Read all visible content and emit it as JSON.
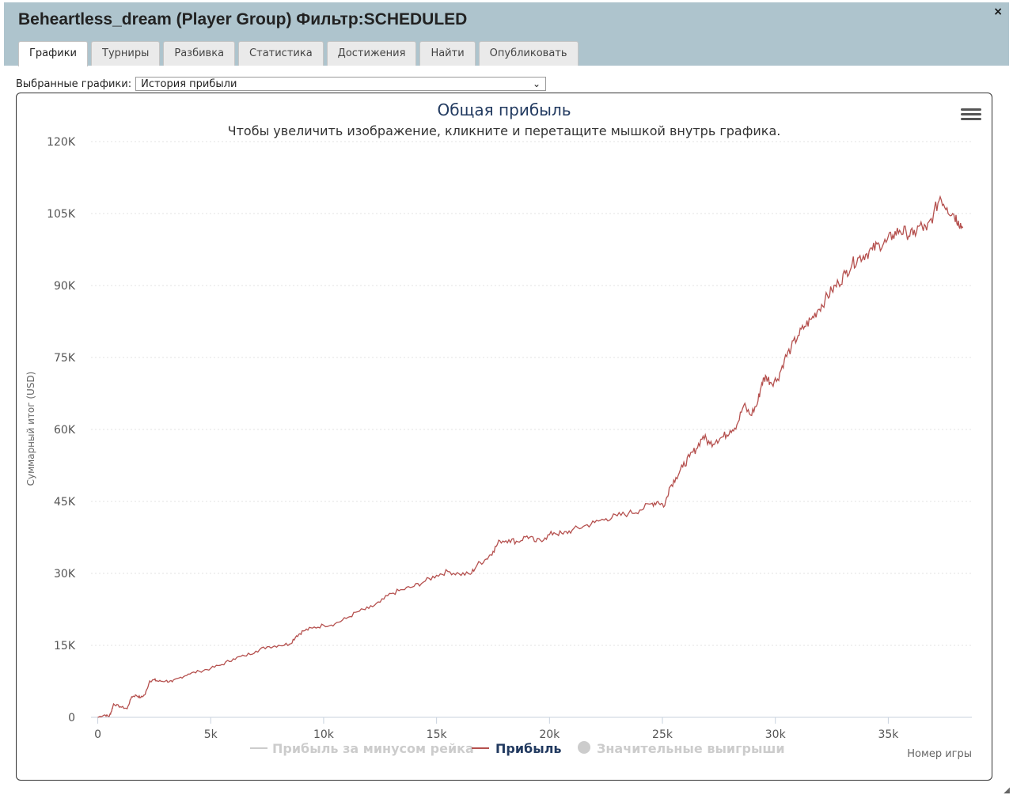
{
  "window": {
    "title": "Beheartless_dream (Player Group) Фильтр:SCHEDULED",
    "close_label": "×"
  },
  "tabs": [
    {
      "label": "Графики",
      "active": true
    },
    {
      "label": "Турниры",
      "active": false
    },
    {
      "label": "Разбивка",
      "active": false
    },
    {
      "label": "Статистика",
      "active": false
    },
    {
      "label": "Достижения",
      "active": false
    },
    {
      "label": "Найти",
      "active": false
    },
    {
      "label": "Опубликовать",
      "active": false
    }
  ],
  "selector": {
    "label": "Выбранные графики:",
    "value": "История прибыли"
  },
  "chart_data": {
    "type": "line",
    "title": "Общая прибыль",
    "subtitle": "Чтобы увеличить изображение, кликните и перетащите мышкой внутрь графика.",
    "ylabel": "Суммарный итог (USD)",
    "xlabel": "Номер игры",
    "xlim": [
      -300,
      38700
    ],
    "ylim": [
      0,
      120000
    ],
    "x_ticks": [
      0,
      5000,
      10000,
      15000,
      20000,
      25000,
      30000,
      35000
    ],
    "x_tick_labels": [
      "0",
      "5k",
      "10k",
      "15k",
      "20k",
      "25k",
      "30k",
      "35k"
    ],
    "y_ticks": [
      0,
      15000,
      30000,
      45000,
      60000,
      75000,
      90000,
      105000,
      120000
    ],
    "y_tick_labels": [
      "0",
      "15K",
      "30K",
      "45K",
      "60K",
      "75K",
      "90K",
      "105K",
      "120K"
    ],
    "grid": true,
    "legend_position": "bottom",
    "legend": [
      {
        "name": "Прибыль за минусом рейка",
        "symbol": "line",
        "color": "#cccccc",
        "visible": false
      },
      {
        "name": "Прибыль",
        "symbol": "line",
        "color": "#b5504e",
        "visible": true
      },
      {
        "name": "Значительные выигрыши",
        "symbol": "circle",
        "color": "#cccccc",
        "visible": false
      }
    ],
    "series": [
      {
        "name": "Прибыль",
        "color": "#b5504e",
        "x": [
          0,
          300,
          500,
          600,
          700,
          1000,
          1300,
          1500,
          1700,
          1900,
          2100,
          2300,
          2500,
          2700,
          3000,
          3300,
          3600,
          4000,
          4500,
          5000,
          5500,
          6000,
          6500,
          7000,
          7500,
          8000,
          8500,
          8800,
          9100,
          9500,
          10000,
          10500,
          11000,
          11500,
          12000,
          12500,
          13000,
          13500,
          14000,
          14500,
          15000,
          15500,
          16000,
          16500,
          16800,
          17200,
          17500,
          17800,
          18200,
          18600,
          19000,
          19400,
          19800,
          20200,
          20600,
          21000,
          21500,
          22000,
          22500,
          23000,
          23500,
          24000,
          24500,
          24800,
          25100,
          25300,
          25600,
          25900,
          26200,
          26500,
          26800,
          27100,
          27400,
          27700,
          28000,
          28300,
          28600,
          28900,
          29200,
          29400,
          29600,
          29800,
          30100,
          30400,
          30700,
          31000,
          31300,
          31600,
          31900,
          32200,
          32500,
          32800,
          33100,
          33400,
          33700,
          34000,
          34300,
          34600,
          34900,
          35200,
          35500,
          35800,
          36100,
          36400,
          36700,
          37000,
          37300,
          37600,
          37900,
          38100,
          38300
        ],
        "y": [
          0,
          500,
          200,
          1200,
          2800,
          2200,
          1800,
          4300,
          4600,
          4100,
          4800,
          7600,
          7800,
          7500,
          7600,
          7400,
          8200,
          9000,
          9600,
          10200,
          11000,
          12200,
          12800,
          13800,
          14700,
          15000,
          15300,
          17000,
          18000,
          18600,
          19200,
          19500,
          20600,
          22000,
          22700,
          24000,
          25800,
          26600,
          27300,
          28400,
          29600,
          30400,
          29900,
          29800,
          31800,
          33000,
          34600,
          36800,
          37000,
          36600,
          37800,
          36600,
          37400,
          38500,
          38200,
          39000,
          39800,
          40600,
          41400,
          42000,
          42500,
          43200,
          44500,
          45000,
          44100,
          47800,
          50000,
          52200,
          54300,
          56000,
          58600,
          57000,
          57800,
          58500,
          59800,
          61000,
          65000,
          63000,
          65300,
          69700,
          71000,
          69800,
          70500,
          74500,
          77000,
          79500,
          81500,
          83000,
          85000,
          87000,
          89000,
          90500,
          92500,
          94500,
          95800,
          96500,
          97500,
          98500,
          99000,
          100500,
          101500,
          101000,
          100500,
          102500,
          101500,
          104800,
          108500,
          106200,
          104800,
          103500,
          102000
        ]
      }
    ]
  }
}
